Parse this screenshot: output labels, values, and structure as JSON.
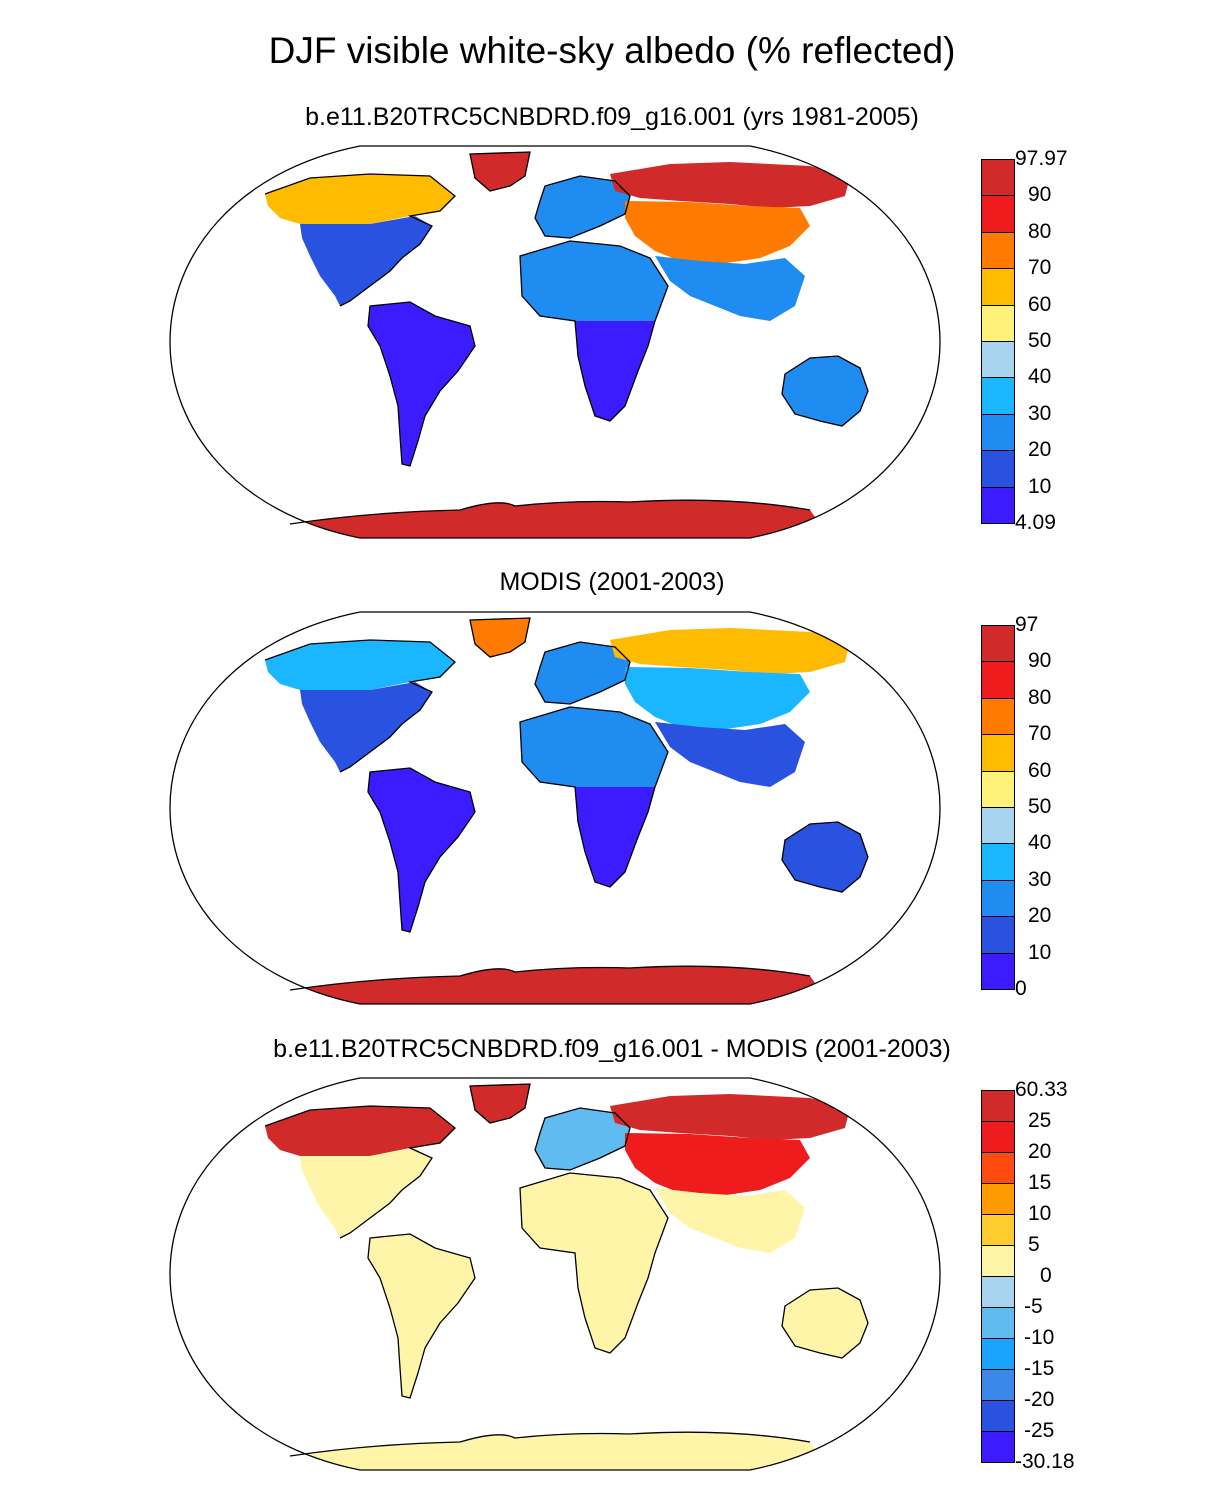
{
  "main_title": "DJF visible white-sky albedo (% reflected)",
  "colors": {
    "ocean": "#ffffff",
    "coastline": "#000000"
  },
  "panels": [
    {
      "id": "model",
      "title": "b.e11.B20TRC5CNBDRD.f09_g16.001 (yrs 1981-2005)",
      "labels": [
        "97.97",
        "90",
        "80",
        "70",
        "60",
        "50",
        "40",
        "30",
        "20",
        "10",
        "4.09"
      ],
      "colors": [
        "#d12a2a",
        "#ee1c1c",
        "#ff7a00",
        "#ffbb00",
        "#fff27a",
        "#a8d4f0",
        "#1ab6ff",
        "#1e8cf0",
        "#2a52e0",
        "#3c1cff"
      ],
      "regions": {
        "north_america": "#2a52e0",
        "canada": "#ffbb00",
        "greenland": "#d12a2a",
        "south_america": "#3c1cff",
        "europe": "#1e8cf0",
        "africa_north": "#1e8cf0",
        "africa_south": "#3c1cff",
        "siberia": "#d12a2a",
        "central_asia": "#ff7a00",
        "south_asia": "#1e8cf0",
        "australia": "#1e8cf0",
        "antarctica": "#d12a2a"
      }
    },
    {
      "id": "obs",
      "title": "MODIS (2001-2003)",
      "labels": [
        "97",
        "90",
        "80",
        "70",
        "60",
        "50",
        "40",
        "30",
        "20",
        "10",
        "0"
      ],
      "colors": [
        "#d12a2a",
        "#ee1c1c",
        "#ff7a00",
        "#ffbb00",
        "#fff27a",
        "#a8d4f0",
        "#1ab6ff",
        "#1e8cf0",
        "#2a52e0",
        "#3c1cff"
      ],
      "regions": {
        "north_america": "#2a52e0",
        "canada": "#1ab6ff",
        "greenland": "#ff7a00",
        "south_america": "#3c1cff",
        "europe": "#1e8cf0",
        "africa_north": "#1e8cf0",
        "africa_south": "#3c1cff",
        "siberia": "#ffbb00",
        "central_asia": "#1ab6ff",
        "south_asia": "#2a52e0",
        "australia": "#2a52e0",
        "antarctica": "#d12a2a"
      }
    },
    {
      "id": "diff",
      "title": "b.e11.B20TRC5CNBDRD.f09_g16.001 - MODIS (2001-2003)",
      "labels": [
        "60.33",
        "25",
        "20",
        "15",
        "10",
        "5",
        "0",
        "-5",
        "-10",
        "-15",
        "-20",
        "-25",
        "-30.18"
      ],
      "colors": [
        "#d12a2a",
        "#ee1c1c",
        "#ff4a10",
        "#ff9a00",
        "#ffcc30",
        "#fff5a8",
        "#a8d4f0",
        "#60bcf0",
        "#1aa4ff",
        "#3a88e8",
        "#2a52e0",
        "#3c1cff"
      ],
      "regions": {
        "north_america": "#fff5a8",
        "canada": "#d12a2a",
        "greenland": "#d12a2a",
        "south_america": "#fff5a8",
        "europe": "#60bcf0",
        "africa_north": "#fff5a8",
        "africa_south": "#fff5a8",
        "siberia": "#d12a2a",
        "central_asia": "#ee1c1c",
        "south_asia": "#fff5a8",
        "australia": "#fff5a8",
        "antarctica": "#fff5a8"
      }
    }
  ]
}
